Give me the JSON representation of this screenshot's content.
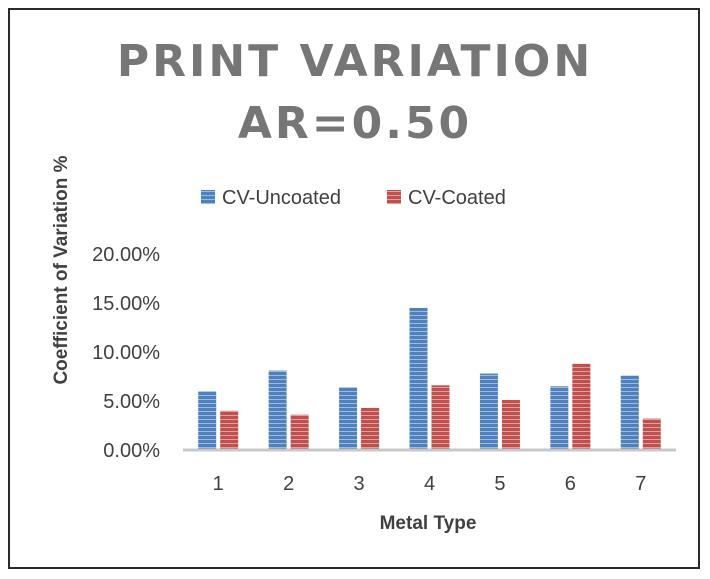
{
  "chart_data": {
    "type": "bar",
    "title_lines": [
      "PRINT VARIATION",
      "AR=0.50"
    ],
    "xlabel": "Metal Type",
    "ylabel": "Coefficient of Variation %",
    "categories": [
      "1",
      "2",
      "3",
      "4",
      "5",
      "6",
      "7"
    ],
    "series": [
      {
        "name": "CV-Uncoated",
        "color": "#4f81bd",
        "values": [
          6.0,
          8.1,
          6.4,
          14.5,
          7.8,
          6.5,
          7.6
        ]
      },
      {
        "name": "CV-Coated",
        "color": "#c0504d",
        "values": [
          4.0,
          3.6,
          4.3,
          6.6,
          5.1,
          8.8,
          3.2
        ]
      }
    ],
    "ylim": [
      0,
      20
    ],
    "yticks": [
      0,
      5,
      10,
      15,
      20
    ],
    "ytick_labels": [
      "0.00%",
      "5.00%",
      "10.00%",
      "15.00%",
      "20.00%"
    ],
    "grid": false,
    "legend_position": "top"
  }
}
